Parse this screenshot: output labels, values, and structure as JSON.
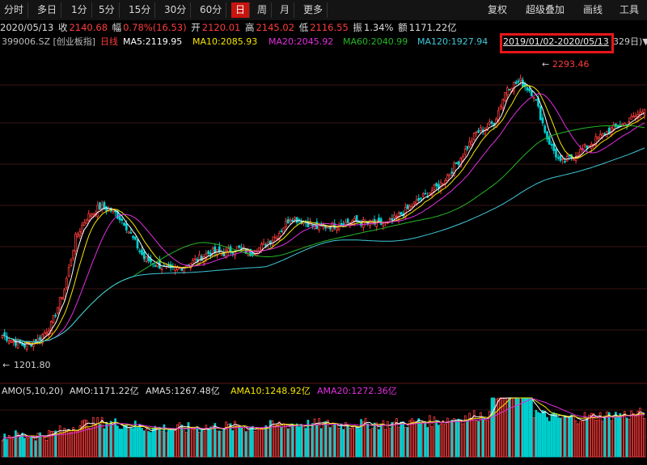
{
  "toolbar": {
    "tabs": [
      "分时",
      "多日",
      "1分",
      "5分",
      "15分",
      "30分",
      "60分",
      "日",
      "周",
      "月",
      "更多"
    ],
    "active": "日",
    "right": [
      "复权",
      "超级叠加",
      "画线",
      "工具"
    ]
  },
  "quote": {
    "date": "2020/05/13",
    "close_label": "收",
    "close": "2140.68",
    "change_label": "幅",
    "change": "0.78%(16.53)",
    "open_label": "开",
    "open": "2120.01",
    "high_label": "高",
    "high": "2145.02",
    "low_label": "低",
    "low": "2116.55",
    "amp_label": "振",
    "amp": "1.34%",
    "amount_label": "额",
    "amount": "1171.22亿"
  },
  "ma_line": {
    "symbol": "399006.SZ [创业板指]",
    "period": "日线",
    "ma5": "MA5:2119.95",
    "ma10": "MA10:2085.93",
    "ma20": "MA20:2045.92",
    "ma60": "MA60:2040.99",
    "ma120": "MA120:1927.94",
    "range": "2019/01/02-2020/05/13",
    "range_tail": "329日)▼"
  },
  "amo_line": {
    "title": "AMO(5,10,20)",
    "amo": "AMO:1171.22亿",
    "ama5": "AMA5:1267.48亿",
    "ama10": "AMA10:1248.92亿",
    "ama20": "AMA20:1272.36亿"
  },
  "colors": {
    "up": "#ff3c3c",
    "down": "#00d0d0",
    "ma5": "#ffffff",
    "ma10": "#f7e600",
    "ma20": "#e22ee0",
    "ma60": "#25b825",
    "ma120": "#3fc9d9"
  },
  "chart_data": {
    "type": "candlestick",
    "title": "399006.SZ 创业板指 日线",
    "ylim": [
      1160,
      2360
    ],
    "annotations": [
      {
        "label": "2293.46",
        "value": 2293.46,
        "kind": "high"
      },
      {
        "label": "1201.80",
        "value": 1201.8,
        "kind": "low"
      }
    ],
    "anchors": [
      {
        "i": 0,
        "v": 1260
      },
      {
        "i": 5,
        "v": 1235
      },
      {
        "i": 10,
        "v": 1220
      },
      {
        "i": 16,
        "v": 1240
      },
      {
        "i": 22,
        "v": 1300
      },
      {
        "i": 28,
        "v": 1440
      },
      {
        "i": 33,
        "v": 1640
      },
      {
        "i": 38,
        "v": 1720
      },
      {
        "i": 44,
        "v": 1760
      },
      {
        "i": 50,
        "v": 1745
      },
      {
        "i": 55,
        "v": 1700
      },
      {
        "i": 60,
        "v": 1620
      },
      {
        "i": 64,
        "v": 1560
      },
      {
        "i": 70,
        "v": 1535
      },
      {
        "i": 76,
        "v": 1510
      },
      {
        "i": 82,
        "v": 1530
      },
      {
        "i": 88,
        "v": 1555
      },
      {
        "i": 94,
        "v": 1585
      },
      {
        "i": 100,
        "v": 1580
      },
      {
        "i": 106,
        "v": 1600
      },
      {
        "i": 112,
        "v": 1580
      },
      {
        "i": 118,
        "v": 1610
      },
      {
        "i": 124,
        "v": 1650
      },
      {
        "i": 130,
        "v": 1720
      },
      {
        "i": 136,
        "v": 1705
      },
      {
        "i": 142,
        "v": 1680
      },
      {
        "i": 150,
        "v": 1690
      },
      {
        "i": 158,
        "v": 1705
      },
      {
        "i": 166,
        "v": 1695
      },
      {
        "i": 174,
        "v": 1695
      },
      {
        "i": 182,
        "v": 1745
      },
      {
        "i": 190,
        "v": 1800
      },
      {
        "i": 198,
        "v": 1850
      },
      {
        "i": 206,
        "v": 1940
      },
      {
        "i": 214,
        "v": 2050
      },
      {
        "i": 222,
        "v": 2090
      },
      {
        "i": 228,
        "v": 2230
      },
      {
        "i": 234,
        "v": 2250
      },
      {
        "i": 240,
        "v": 2200
      },
      {
        "i": 246,
        "v": 2030
      },
      {
        "i": 252,
        "v": 1930
      },
      {
        "i": 258,
        "v": 1960
      },
      {
        "i": 266,
        "v": 2010
      },
      {
        "i": 274,
        "v": 2060
      },
      {
        "i": 282,
        "v": 2090
      },
      {
        "i": 290,
        "v": 2140
      }
    ],
    "volume_range": [
      0,
      1
    ]
  }
}
